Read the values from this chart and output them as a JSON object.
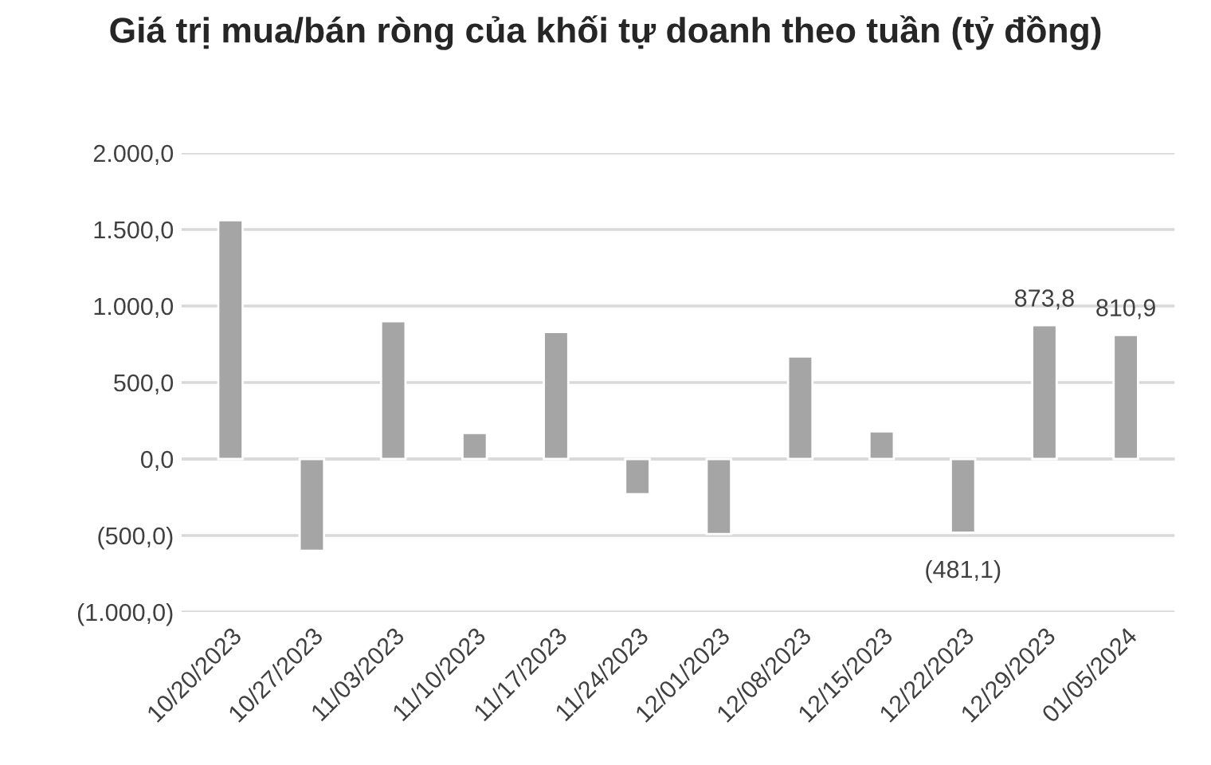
{
  "chart_data": {
    "type": "bar",
    "title": "Giá trị mua/bán ròng của khối tự doanh theo tuần (tỷ đồng)",
    "categories": [
      "10/20/2023",
      "10/27/2023",
      "11/03/2023",
      "11/10/2023",
      "11/17/2023",
      "11/24/2023",
      "12/01/2023",
      "12/08/2023",
      "12/15/2023",
      "12/22/2023",
      "12/29/2023",
      "01/05/2024"
    ],
    "values": [
      1560,
      -600,
      900,
      170,
      830,
      -230,
      -490,
      670,
      180,
      -481.1,
      873.8,
      810.9
    ],
    "value_labels": [
      null,
      null,
      null,
      null,
      null,
      null,
      null,
      null,
      null,
      "(481,1)",
      "873,8",
      "810,9"
    ],
    "color": "#a5a5a5",
    "ylim": [
      -1000,
      2000
    ],
    "yticks": [
      {
        "value": -1000,
        "label": "(1.000,0)"
      },
      {
        "value": -500,
        "label": "(500,0)"
      },
      {
        "value": 0,
        "label": "0,0"
      },
      {
        "value": 500,
        "label": "500,0"
      },
      {
        "value": 1000,
        "label": "1.000,0"
      },
      {
        "value": 1500,
        "label": "1.500,0"
      },
      {
        "value": 2000,
        "label": "2.000,0"
      }
    ],
    "grid": "y"
  }
}
